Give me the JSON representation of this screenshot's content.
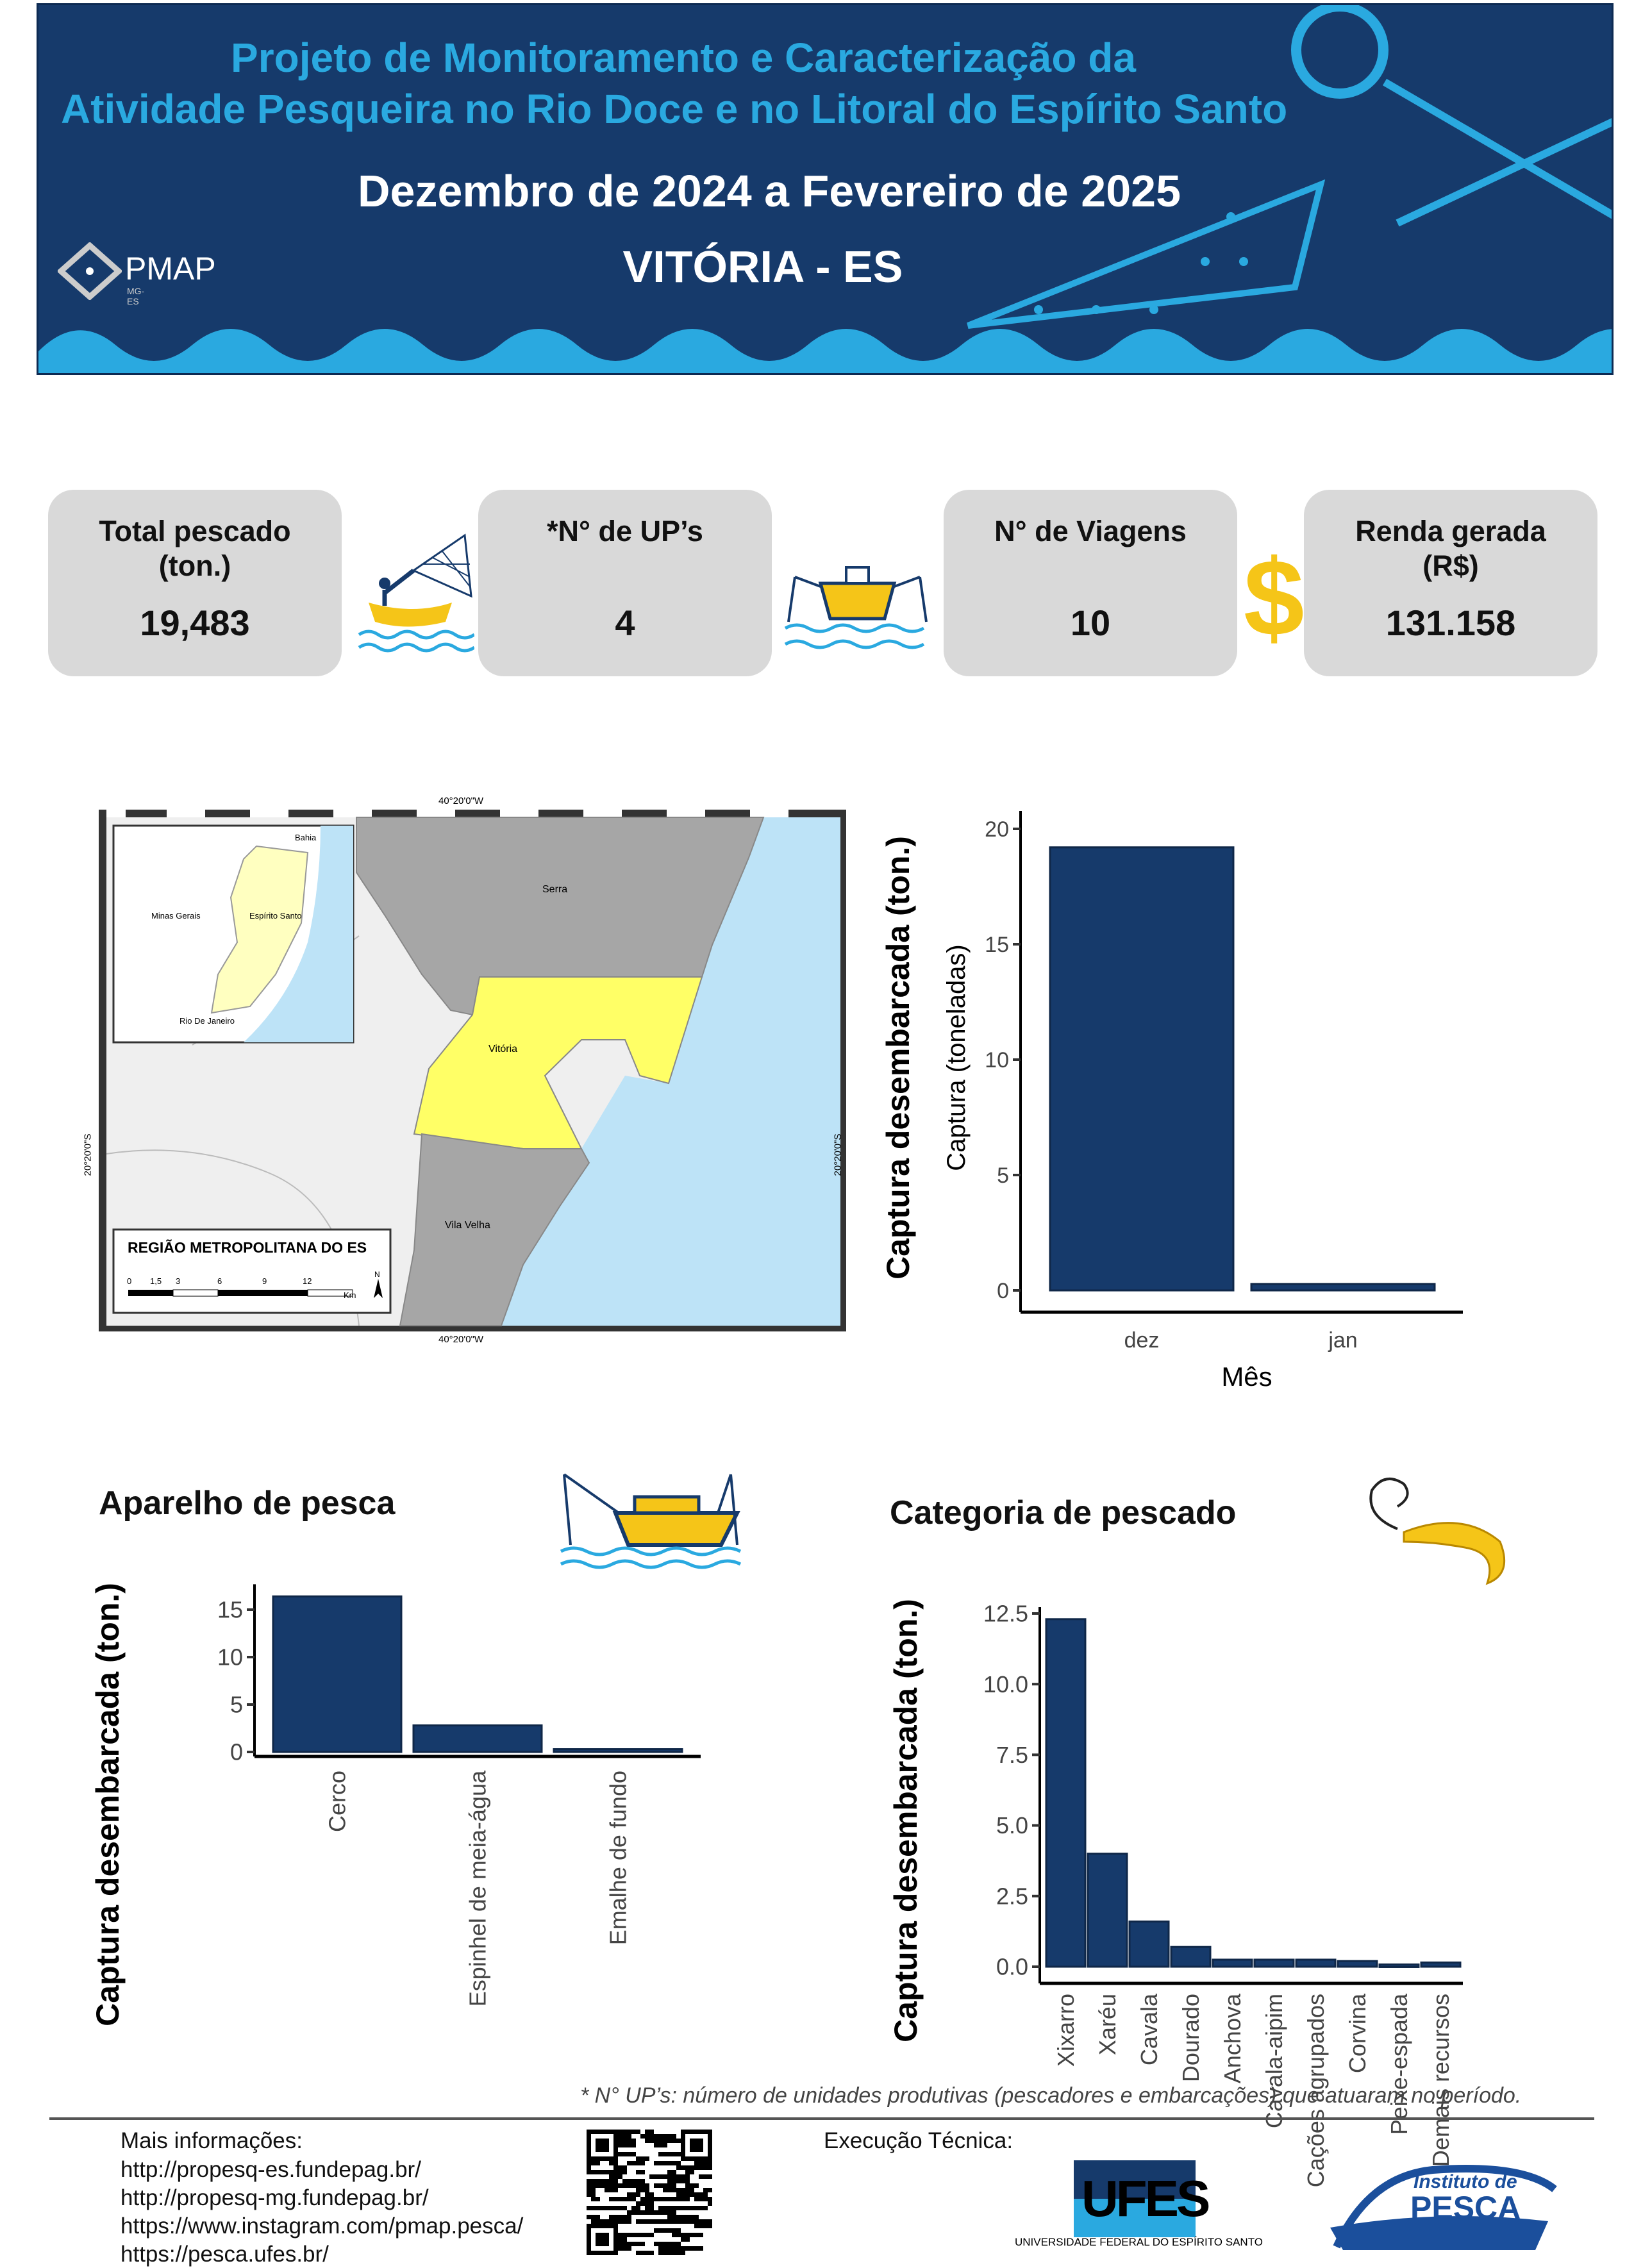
{
  "header": {
    "title_line1": "Projeto de Monitoramento e Caracterização da",
    "title_line2": "Atividade Pesqueira no Rio Doce e no Litoral do Espírito Santo",
    "period": "Dezembro de 2024 a Fevereiro de 2025",
    "location": "VITÓRIA - ES",
    "logo_text": "PMAP",
    "logo_sub": "MG-ES"
  },
  "stats": [
    {
      "label": "Total pescado\n(ton.)",
      "value": "19,483",
      "icon": "fisherman-net-icon"
    },
    {
      "label": "*N° de UP’s",
      "value": "4",
      "icon": "boat-icon"
    },
    {
      "label": "N°  de Viagens",
      "value": "10",
      "icon": "dollar-icon"
    },
    {
      "label": "Renda gerada\n(R$)",
      "value": "131.158"
    }
  ],
  "dollar_symbol": "$",
  "map": {
    "lon_label": "40°20'0\"W",
    "lat_label": "20°20'0\"S",
    "places": {
      "serra": "Serra",
      "vitoria": "Vitória",
      "vila_velha": "Vila Velha"
    },
    "inset": {
      "bahia": "Bahia",
      "mg": "Minas Gerais",
      "es": "Espírito Santo",
      "rj": "Rio De Janeiro"
    },
    "legend_title": "REGIÃO METROPOLITANA DO ES",
    "scale_ticks": [
      "0",
      "1,5",
      "3",
      "6",
      "9",
      "12"
    ],
    "scale_unit": "Km",
    "north": "N"
  },
  "sections": {
    "gear_title": "Aparelho de pesca",
    "category_title": "Categoria de pescado"
  },
  "chart_data": [
    {
      "type": "bar",
      "title": "",
      "outer_ylabel": "Captura desembarcada (ton.)",
      "ylabel": "Captura (toneladas)",
      "xlabel": "Mês",
      "categories": [
        "dez",
        "jan"
      ],
      "values": [
        19.2,
        0.28
      ],
      "ylim": [
        -0.8,
        20.5
      ],
      "yticks": [
        "0",
        "5",
        "10",
        "15",
        "20"
      ],
      "color": "#163a6b"
    },
    {
      "type": "bar",
      "title": "Aparelho de pesca",
      "ylabel": "Captura desembarcada (ton.)",
      "categories": [
        "Cerco",
        "Espinhel de meia-água",
        "Emalhe de fundo"
      ],
      "values": [
        16.4,
        2.8,
        0.3
      ],
      "ylim": [
        0,
        17
      ],
      "yticks": [
        "0",
        "5",
        "10",
        "15"
      ],
      "color": "#163a6b"
    },
    {
      "type": "bar",
      "title": "Categoria de pescado",
      "ylabel": "Captura desembarcada (ton.)",
      "categories": [
        "Xixarro",
        "Xaréu",
        "Cavala",
        "Dourado",
        "Anchova",
        "Cavala-aipim",
        "Cações agrupados",
        "Corvina",
        "Peixe-espada",
        "Demais recursos"
      ],
      "values": [
        12.3,
        4.0,
        1.6,
        0.7,
        0.25,
        0.25,
        0.25,
        0.2,
        0.08,
        0.15
      ],
      "ylim": [
        0,
        12.5
      ],
      "yticks": [
        "0.0",
        "2.5",
        "5.0",
        "7.5",
        "10.0",
        "12.5"
      ],
      "color": "#163a6b"
    }
  ],
  "footnote": "* N° UP’s: número de unidades produtivas (pescadores e embarcações) que atuaram no período.",
  "footer": {
    "more_info": "Mais informações:",
    "links": [
      "http://propesq-es.fundepag.br/",
      "http://propesq-mg.fundepag.br/",
      "https://www.instagram.com/pmap.pesca/",
      "https://pesca.ufes.br/"
    ],
    "exec_label": "Execução  Técnica:",
    "ufes_logo": "UFES",
    "ufes_name": "UNIVERSIDADE FEDERAL DO ESPÍRITO SANTO",
    "pesca_logo_line1": "Instituto de",
    "pesca_logo_line2": "PESCA"
  }
}
